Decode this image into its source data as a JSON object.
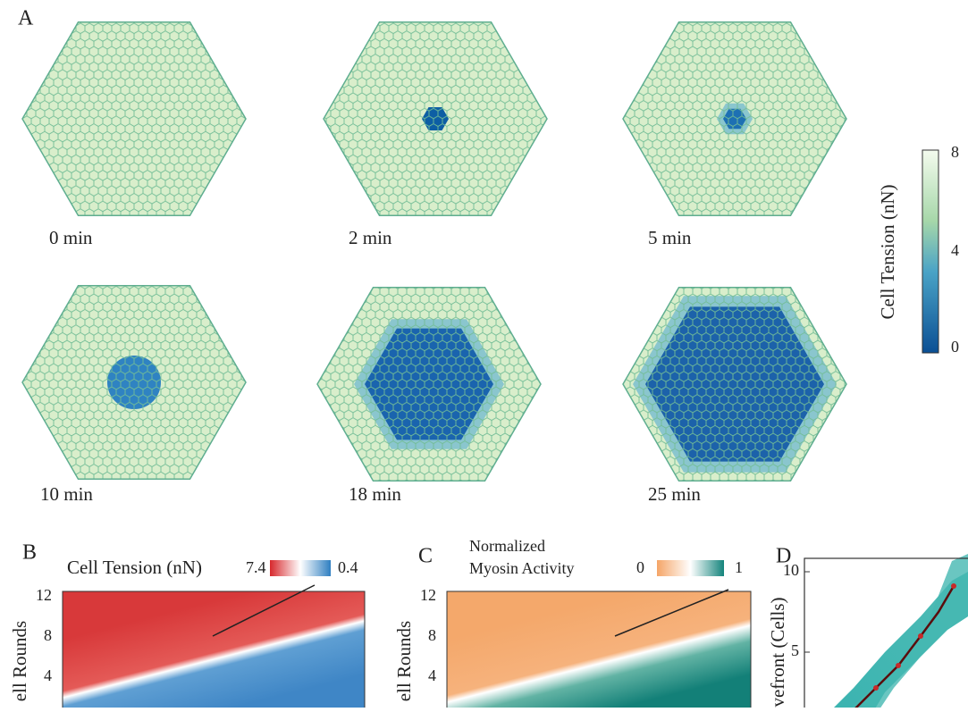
{
  "panel_a": {
    "label": "A",
    "frames": [
      "0 min",
      "2 min",
      "5 min",
      "10 min",
      "18 min",
      "25 min"
    ],
    "colorbar": {
      "title": "Cell Tension (nN)",
      "ticks": [
        "8",
        "4",
        "0"
      ]
    }
  },
  "panel_b": {
    "label": "B",
    "legend_title": "Cell Tension (nN)",
    "legend_max": "7.4",
    "legend_min": "0.4",
    "yticks": [
      "12",
      "8",
      "4"
    ],
    "ylabel": "ell Rounds"
  },
  "panel_c": {
    "label": "C",
    "legend_title": [
      "Normalized",
      "Myosin Activity"
    ],
    "legend_min": "0",
    "legend_max": "1",
    "yticks": [
      "12",
      "8",
      "4"
    ],
    "ylabel": "ell Rounds"
  },
  "panel_d": {
    "label": "D",
    "yticks": [
      "10",
      "5"
    ],
    "ylabel": "vefront (Cells)"
  }
}
